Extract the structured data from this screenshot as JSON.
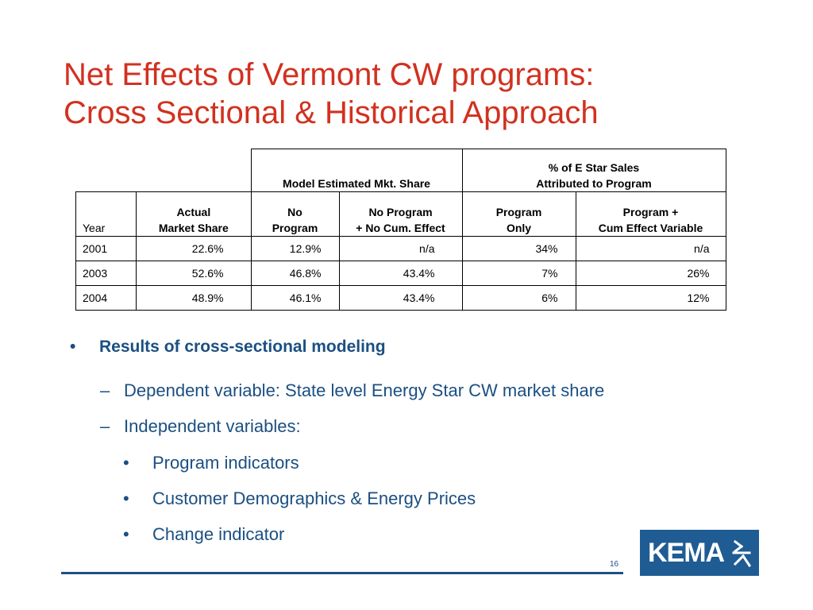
{
  "title": {
    "line1": "Net Effects of Vermont CW programs:",
    "line2": "Cross Sectional & Historical Approach"
  },
  "table": {
    "group_headers": {
      "model": "Model Estimated Mkt. Share",
      "estar_line1": "% of E Star Sales",
      "estar_line2": "Attributed to Program"
    },
    "columns": [
      {
        "line1": "",
        "line2": "Year"
      },
      {
        "line1": "Actual",
        "line2": "Market Share"
      },
      {
        "line1": "No",
        "line2": "Program"
      },
      {
        "line1": "No Program",
        "line2": "+ No Cum. Effect"
      },
      {
        "line1": "Program",
        "line2": "Only"
      },
      {
        "line1": "Program +",
        "line2": "Cum Effect Variable"
      }
    ],
    "rows": [
      [
        "2001",
        "22.6%",
        "12.9%",
        "n/a",
        "34%",
        "n/a"
      ],
      [
        "2003",
        "52.6%",
        "46.8%",
        "43.4%",
        "7%",
        "26%"
      ],
      [
        "2004",
        "48.9%",
        "46.1%",
        "43.4%",
        "6%",
        "12%"
      ]
    ]
  },
  "bullets": {
    "level1_marker": "•",
    "level2_marker": "–",
    "level3_marker": "•",
    "main": "Results of cross-sectional modeling",
    "sub": [
      "Dependent variable:  State level Energy Star CW market share",
      "Independent variables:"
    ],
    "subsub": [
      "Program indicators",
      "Customer Demographics & Energy Prices",
      "Change indicator"
    ]
  },
  "footer": {
    "page_number": "16",
    "logo_text": "KEMA",
    "logo_icon": "kema-lightning-icon"
  },
  "colors": {
    "title": "#d2311f",
    "bullet_text": "#1b4f82",
    "footer_line": "#1f4f86",
    "logo_bg": "#1f5c93"
  }
}
